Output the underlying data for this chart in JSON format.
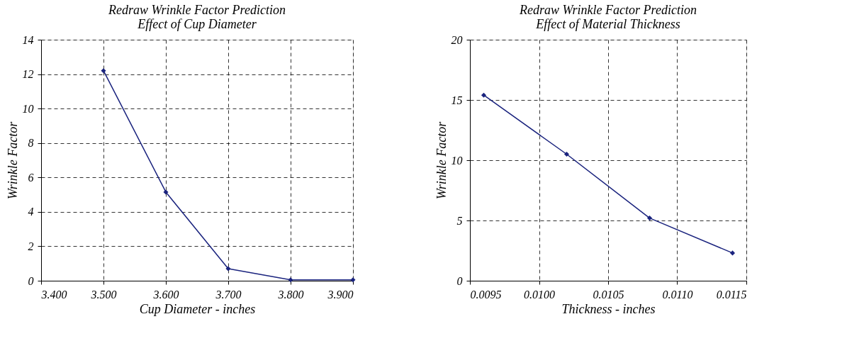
{
  "chart_data": [
    {
      "type": "line",
      "title": [
        "Redraw Wrinkle Factor Prediction",
        "Effect of Cup Diameter"
      ],
      "xlabel": "Cup Diameter - inches",
      "ylabel": "Wrinkle Factor",
      "x": [
        3.5,
        3.6,
        3.7,
        3.8,
        3.9
      ],
      "series": [
        {
          "color": "#1a237e",
          "values": [
            12.2,
            5.15,
            0.7,
            0.05,
            0.05
          ]
        }
      ],
      "xlim": [
        3.4,
        3.9
      ],
      "xticks": [
        {
          "value": 3.4,
          "label": "3.400"
        },
        {
          "value": 3.5,
          "label": "3.500"
        },
        {
          "value": 3.6,
          "label": "3.600"
        },
        {
          "value": 3.7,
          "label": "3.700"
        },
        {
          "value": 3.8,
          "label": "3.800"
        },
        {
          "value": 3.9,
          "label": "3.900"
        }
      ],
      "ylim": [
        0,
        14
      ],
      "yticks": [
        0,
        2,
        4,
        6,
        8,
        10,
        12,
        14
      ],
      "grid": true,
      "marker": "diamond",
      "line_style": "solid"
    },
    {
      "type": "line",
      "title": [
        "Redraw Wrinkle Factor Prediction",
        "Effect of Material Thickness"
      ],
      "xlabel": "Thickness - inches",
      "ylabel": "Wrinkle Factor",
      "x": [
        0.0096,
        0.0102,
        0.0108,
        0.0114
      ],
      "series": [
        {
          "color": "#1a237e",
          "values": [
            15.4,
            10.5,
            5.2,
            2.3
          ]
        }
      ],
      "xlim": [
        0.0095,
        0.0115
      ],
      "xticks": [
        {
          "value": 0.0095,
          "label": "0.0095"
        },
        {
          "value": 0.01,
          "label": "0.0100"
        },
        {
          "value": 0.0105,
          "label": "0.0105"
        },
        {
          "value": 0.011,
          "label": "0.0110"
        },
        {
          "value": 0.0115,
          "label": "0.0115"
        }
      ],
      "ylim": [
        0,
        20
      ],
      "yticks": [
        0,
        5,
        10,
        15,
        20
      ],
      "grid": true,
      "marker": "diamond",
      "line_style": "solid"
    }
  ]
}
